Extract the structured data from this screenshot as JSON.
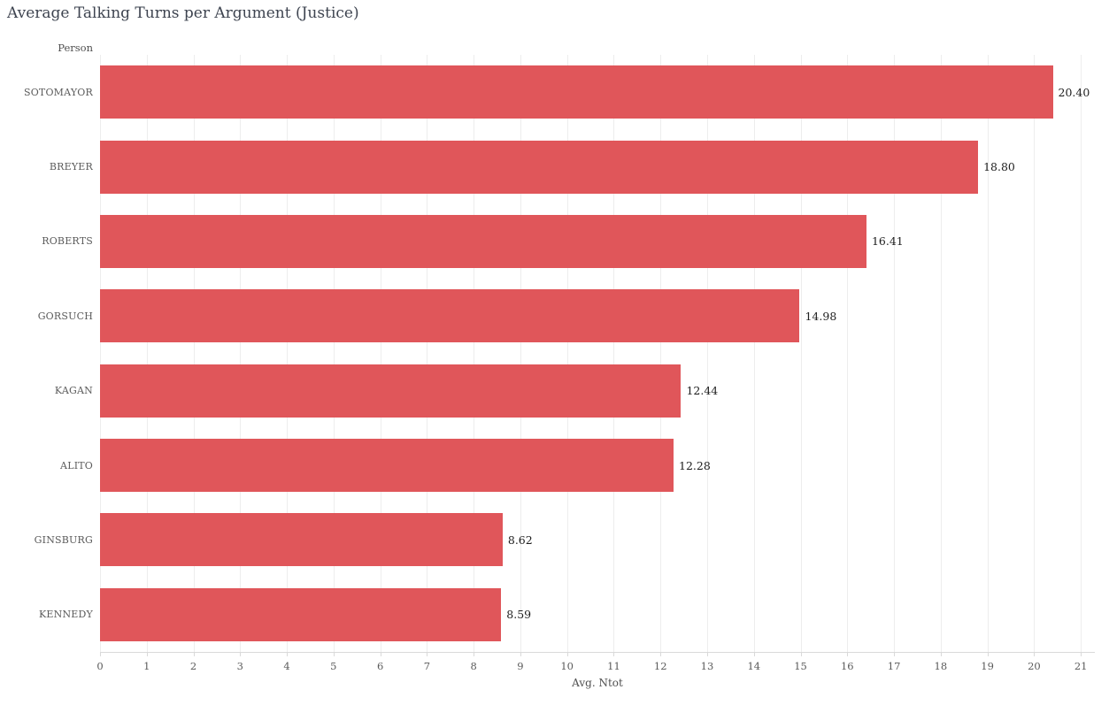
{
  "page": {
    "background": "#ffffff"
  },
  "chart_data": {
    "type": "bar",
    "orientation": "horizontal",
    "title": "Average Talking Turns per Argument (Justice)",
    "y_axis_title": "Person",
    "x_axis_title": "Avg. Ntot",
    "categories": [
      "SOTOMAYOR",
      "BREYER",
      "ROBERTS",
      "GORSUCH",
      "KAGAN",
      "ALITO",
      "GINSBURG",
      "KENNEDY"
    ],
    "values": [
      20.4,
      18.8,
      16.41,
      14.98,
      12.44,
      12.28,
      8.62,
      8.59
    ],
    "value_labels": [
      "20.40",
      "18.80",
      "16.41",
      "14.98",
      "12.44",
      "12.28",
      "8.62",
      "8.59"
    ],
    "x_ticks": [
      0,
      1,
      2,
      3,
      4,
      5,
      6,
      7,
      8,
      9,
      10,
      11,
      12,
      13,
      14,
      15,
      16,
      17,
      18,
      19,
      20,
      21
    ],
    "xlim": [
      0,
      21.3
    ],
    "grid": true,
    "legend": false,
    "colors": {
      "bar": "#e0565a",
      "grid": "#ededed",
      "axis_line": "#d9d9d9",
      "tick_label": "#5b5b5b",
      "category_label": "#5b5b5b",
      "axis_title": "#4f4f4f",
      "value_label": "#1e1e1e",
      "title": "#3e4450",
      "background": "#ffffff"
    }
  }
}
